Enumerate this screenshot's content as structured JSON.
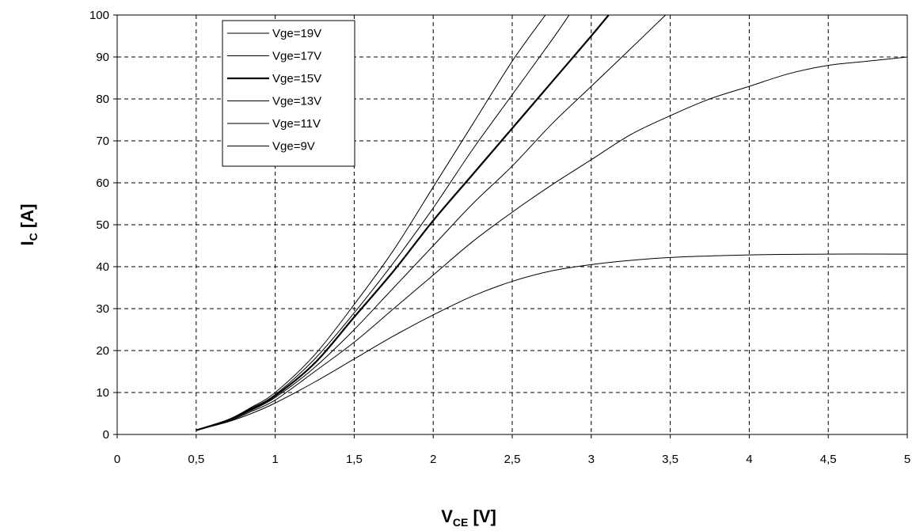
{
  "chart_data": {
    "type": "line",
    "xlim": [
      0,
      5
    ],
    "ylim": [
      0,
      100
    ],
    "xticks": [
      0,
      0.5,
      1,
      1.5,
      2,
      2.5,
      3,
      3.5,
      4,
      4.5,
      5
    ],
    "xtick_labels": [
      "0",
      "0,5",
      "1",
      "1,5",
      "2",
      "2,5",
      "3",
      "3,5",
      "4",
      "4,5",
      "5"
    ],
    "yticks": [
      0,
      10,
      20,
      30,
      40,
      50,
      60,
      70,
      80,
      90,
      100
    ],
    "ytick_labels": [
      "0",
      "10",
      "20",
      "30",
      "40",
      "50",
      "60",
      "70",
      "80",
      "90",
      "100"
    ],
    "xlabel": {
      "main": "V",
      "sub": "CE",
      "unit": " [V]"
    },
    "ylabel": {
      "main": "I",
      "sub": "C",
      "unit": " [A]"
    },
    "grid": true,
    "legend_position": "top-left",
    "series": [
      {
        "name": "Vge=19V",
        "bold": false,
        "x": [
          0.5,
          0.7,
          0.85,
          1.0,
          1.25,
          1.5,
          1.75,
          2.0,
          2.25,
          2.5,
          2.71
        ],
        "y": [
          1,
          3.5,
          6.5,
          10,
          19,
          31,
          44,
          59,
          74,
          89,
          100
        ]
      },
      {
        "name": "Vge=17V",
        "bold": false,
        "x": [
          0.5,
          0.7,
          0.85,
          1.0,
          1.25,
          1.5,
          1.75,
          2.0,
          2.25,
          2.5,
          2.75,
          2.86
        ],
        "y": [
          1,
          3.5,
          6.3,
          9.5,
          18,
          29,
          41,
          54,
          68,
          81,
          94,
          100
        ]
      },
      {
        "name": "Vge=15V",
        "bold": true,
        "x": [
          0.5,
          0.7,
          0.85,
          1.0,
          1.25,
          1.5,
          1.75,
          2.0,
          2.25,
          2.5,
          2.75,
          3.0,
          3.11
        ],
        "y": [
          1,
          3.4,
          6.0,
          9.2,
          17,
          28,
          39,
          51,
          62,
          73,
          84,
          95,
          100
        ]
      },
      {
        "name": "Vge=13V",
        "bold": false,
        "x": [
          0.5,
          0.7,
          0.85,
          1.0,
          1.25,
          1.5,
          1.75,
          2.0,
          2.25,
          2.5,
          2.75,
          3.0,
          3.25,
          3.47
        ],
        "y": [
          1,
          3.3,
          5.8,
          8.8,
          16,
          25,
          35,
          45,
          55,
          64,
          74,
          83,
          92,
          100
        ]
      },
      {
        "name": "Vge=11V",
        "bold": false,
        "x": [
          0.5,
          0.7,
          0.85,
          1.0,
          1.25,
          1.5,
          1.75,
          2.0,
          2.25,
          2.5,
          2.75,
          3.0,
          3.25,
          3.5,
          3.75,
          4.0,
          4.25,
          4.5,
          4.75,
          5.0
        ],
        "y": [
          1,
          3.1,
          5.5,
          8.2,
          15,
          22,
          30,
          38,
          46,
          53,
          59.5,
          65.5,
          71.5,
          76,
          80,
          83,
          86,
          88,
          89,
          90
        ]
      },
      {
        "name": "Vge=9V",
        "bold": false,
        "x": [
          0.5,
          0.7,
          0.85,
          1.0,
          1.25,
          1.5,
          1.75,
          2.0,
          2.25,
          2.5,
          2.75,
          3.0,
          3.25,
          3.5,
          4.0,
          4.5,
          5.0
        ],
        "y": [
          1,
          3.0,
          5.0,
          7.5,
          12.5,
          18,
          23.5,
          28.5,
          33,
          36.5,
          39,
          40.5,
          41.5,
          42.2,
          42.8,
          43,
          43
        ]
      }
    ]
  }
}
